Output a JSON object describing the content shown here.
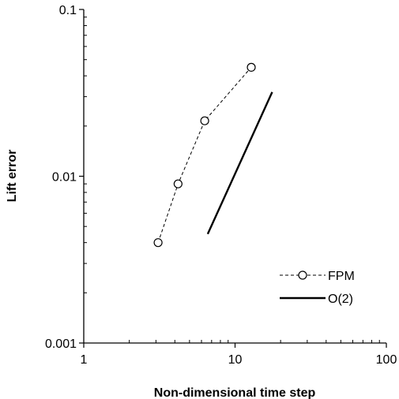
{
  "chart_data": {
    "type": "scatter",
    "xlabel": "Non-dimensional time step",
    "ylabel": "Lift error",
    "xscale": "log",
    "yscale": "log",
    "xlim": [
      1,
      100
    ],
    "ylim": [
      0.001,
      0.1
    ],
    "x_ticks": [
      1,
      10,
      100
    ],
    "x_tick_labels": [
      "1",
      "10",
      "100"
    ],
    "y_ticks": [
      0.001,
      0.01,
      0.1
    ],
    "y_tick_labels": [
      "0.001",
      "0.01",
      "0.1"
    ],
    "grid": false,
    "legend_position": "bottom-right",
    "series": [
      {
        "name": "FPM",
        "style": "dashed line with open circle markers",
        "color": "#000000",
        "x": [
          3.1,
          4.2,
          6.3,
          12.8
        ],
        "y": [
          0.004,
          0.009,
          0.0215,
          0.045
        ]
      },
      {
        "name": "O(2)",
        "style": "solid line",
        "color": "#000000",
        "x": [
          6.6,
          17.6
        ],
        "y": [
          0.0045,
          0.032
        ]
      }
    ]
  }
}
